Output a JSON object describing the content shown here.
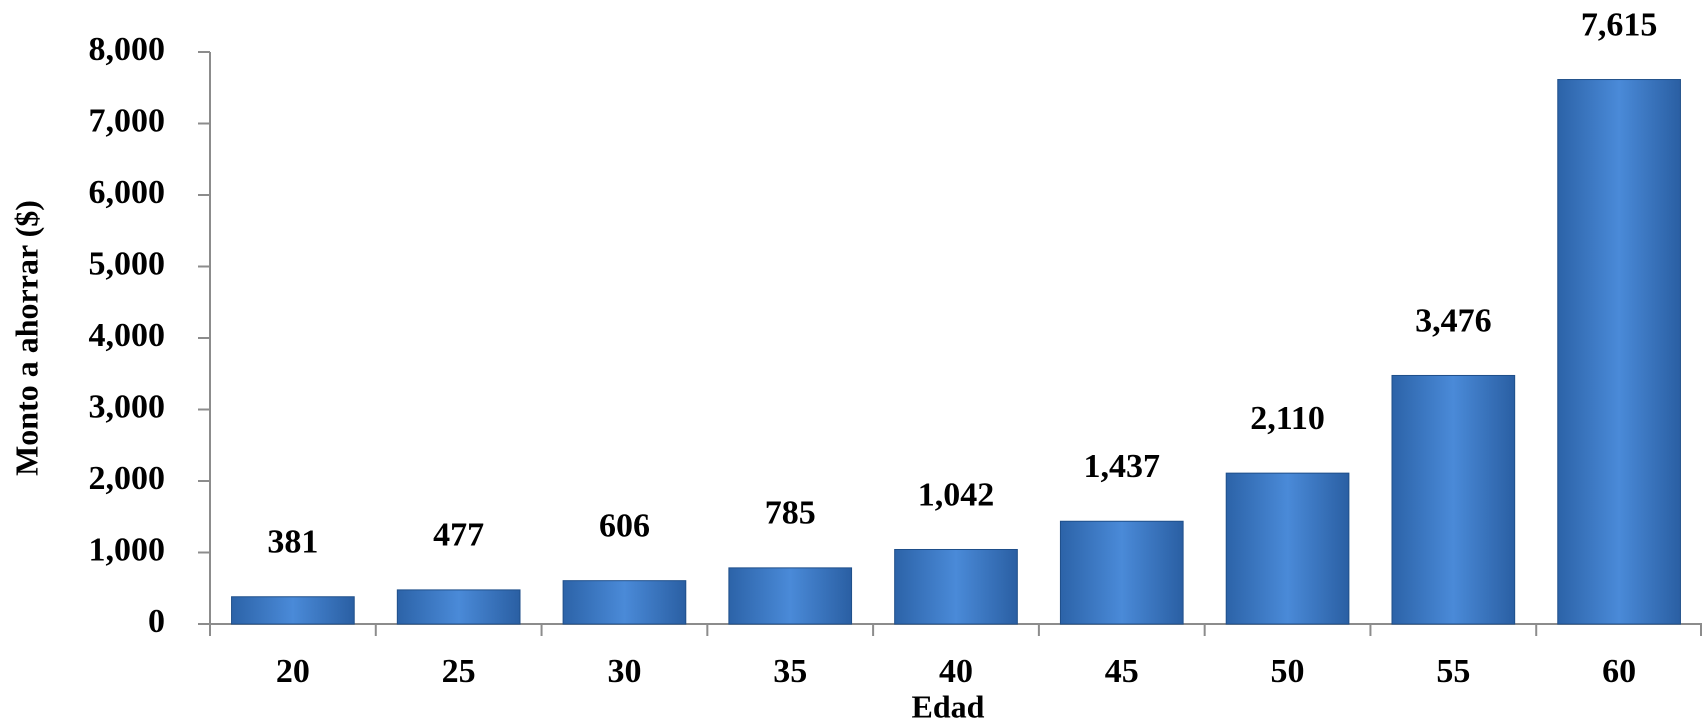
{
  "chart_data": {
    "type": "bar",
    "x_label": "Edad",
    "y_label": "Monto a ahorrar ($)",
    "categories": [
      "20",
      "25",
      "30",
      "35",
      "40",
      "45",
      "50",
      "55",
      "60"
    ],
    "values": [
      381,
      477,
      606,
      785,
      1042,
      1437,
      2110,
      3476,
      7615
    ],
    "value_labels": [
      "381",
      "477",
      "606",
      "785",
      "1,042",
      "1,437",
      "2,110",
      "3,476",
      "7,615"
    ],
    "color": "#3a78c9",
    "ylim": [
      0,
      8000
    ],
    "yticks": [
      0,
      {
        "value": 1000,
        "label": "1,000"
      },
      {
        "value": 2000,
        "label": "2,000"
      },
      {
        "value": 3000,
        "label": "3,000"
      },
      {
        "value": 4000,
        "label": "4,000"
      },
      {
        "value": 5000,
        "label": "5,000"
      },
      {
        "value": 6000,
        "label": "6,000"
      },
      {
        "value": 7000,
        "label": "7,000"
      },
      {
        "value": 8000,
        "label": "8,000"
      }
    ],
    "grid": false
  }
}
